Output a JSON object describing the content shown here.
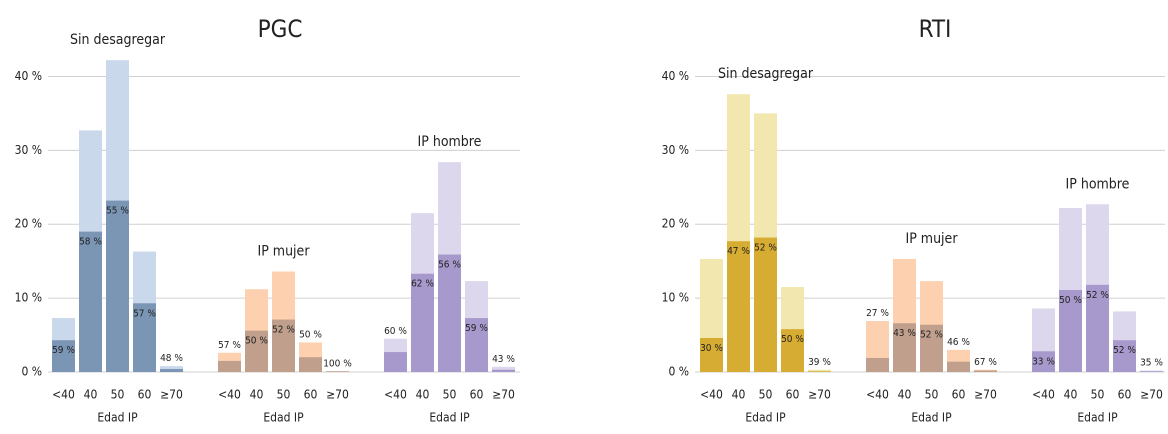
{
  "chart_data": [
    {
      "type": "bar",
      "title": "PGC",
      "ylim": [
        0,
        42.5
      ],
      "yticks": [
        {
          "value": 0,
          "label": "0 %"
        },
        {
          "value": 10,
          "label": "10 %"
        },
        {
          "value": 20,
          "label": "20 %"
        },
        {
          "value": 30,
          "label": "30 %"
        },
        {
          "value": 40,
          "label": "40 %"
        }
      ],
      "grid": true,
      "groups": [
        {
          "name": "Sin desagregar",
          "xlabel": "Edad IP",
          "categories": [
            "<40",
            "40",
            "50",
            "60",
            "≥70"
          ],
          "color": "#c9d8ea",
          "inner_color": "#7b96b5",
          "values": [
            7.3,
            32.7,
            42.2,
            16.3,
            0.8
          ],
          "inner_values": [
            4.3,
            19.0,
            23.2,
            9.3,
            0.4
          ],
          "value_labels": [
            "59 %",
            "58 %",
            "55 %",
            "57 %",
            "48 %"
          ]
        },
        {
          "name": "IP mujer",
          "xlabel": "Edad IP",
          "categories": [
            "<40",
            "40",
            "50",
            "60",
            "≥70"
          ],
          "color": "#fdd0b0",
          "inner_color": "#c0a08c",
          "values": [
            2.6,
            11.2,
            13.6,
            4.0,
            0.1
          ],
          "inner_values": [
            1.5,
            5.6,
            7.1,
            2.0,
            0.1
          ],
          "value_labels": [
            "57 %",
            "50 %",
            "52 %",
            "50 %",
            "100 %"
          ]
        },
        {
          "name": "IP hombre",
          "xlabel": "Edad IP",
          "categories": [
            "<40",
            "40",
            "50",
            "60",
            "≥70"
          ],
          "color": "#dcd7ec",
          "inner_color": "#a899cc",
          "values": [
            4.5,
            21.5,
            28.4,
            12.3,
            0.7
          ],
          "inner_values": [
            2.7,
            13.3,
            15.9,
            7.3,
            0.3
          ],
          "value_labels": [
            "60 %",
            "62 %",
            "56 %",
            "59 %",
            "43 %"
          ]
        }
      ]
    },
    {
      "type": "bar",
      "title": "RTI",
      "ylim": [
        0,
        42.5
      ],
      "yticks": [
        {
          "value": 0,
          "label": "0 %"
        },
        {
          "value": 10,
          "label": "10 %"
        },
        {
          "value": 20,
          "label": "20 %"
        },
        {
          "value": 30,
          "label": "30 %"
        },
        {
          "value": 40,
          "label": "40 %"
        }
      ],
      "grid": true,
      "groups": [
        {
          "name": "Sin desagregar",
          "xlabel": "Edad IP",
          "categories": [
            "<40",
            "40",
            "50",
            "60",
            "≥70"
          ],
          "color": "#f3e7b0",
          "inner_color": "#d7ac32",
          "values": [
            15.3,
            37.6,
            35.0,
            11.5,
            0.3
          ],
          "inner_values": [
            4.6,
            17.7,
            18.2,
            5.8,
            0.1
          ],
          "value_labels": [
            "30 %",
            "47 %",
            "52 %",
            "50 %",
            "39 %"
          ]
        },
        {
          "name": "IP mujer",
          "xlabel": "Edad IP",
          "categories": [
            "<40",
            "40",
            "50",
            "60",
            "≥70"
          ],
          "color": "#fdd0b0",
          "inner_color": "#c0a08c",
          "values": [
            6.9,
            15.3,
            12.3,
            3.0,
            0.3
          ],
          "inner_values": [
            1.9,
            6.6,
            6.4,
            1.4,
            0.2
          ],
          "value_labels": [
            "27 %",
            "43 %",
            "52 %",
            "46 %",
            "67 %"
          ]
        },
        {
          "name": "IP hombre",
          "xlabel": "Edad IP",
          "categories": [
            "<40",
            "40",
            "50",
            "60",
            "≥70"
          ],
          "color": "#dcd7ec",
          "inner_color": "#a899cc",
          "values": [
            8.6,
            22.2,
            22.7,
            8.2,
            0.2
          ],
          "inner_values": [
            2.8,
            11.1,
            11.8,
            4.3,
            0.1
          ],
          "value_labels": [
            "33 %",
            "50 %",
            "52 %",
            "52 %",
            "35 %"
          ]
        }
      ]
    }
  ]
}
